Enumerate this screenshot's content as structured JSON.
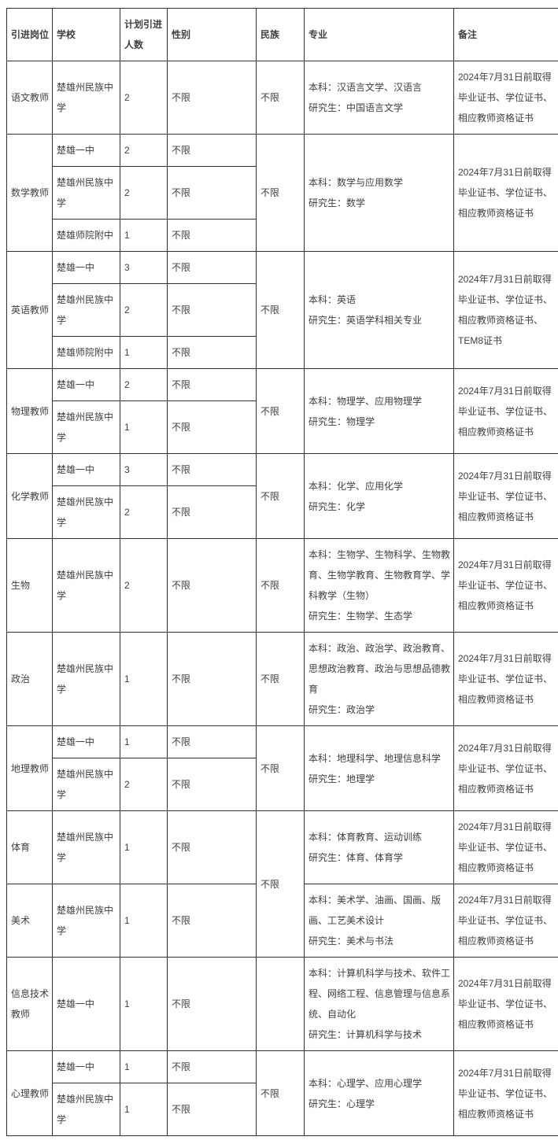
{
  "table": {
    "headers": [
      "引进岗位",
      "学校",
      "计划引进人数",
      "性别",
      "民族",
      "专业",
      "备注"
    ],
    "groups": [
      {
        "position": "语文教师",
        "ethnicity": "不限",
        "major": "本科：汉语言文学、汉语言\n研究生：中国语言文学",
        "remark": "2024年7月31日前取得毕业证书、学位证书、相应教师资格证书",
        "rows": [
          {
            "school": "楚雄州民族中学",
            "count": "2",
            "gender": "不限"
          }
        ]
      },
      {
        "position": "数学教师",
        "ethnicity": "不限",
        "major": "本科：数学与应用数学\n研究生：数学",
        "remark": "2024年7月31日前取得毕业证书、学位证书、相应教师资格证书",
        "rows": [
          {
            "school": "楚雄一中",
            "count": "2",
            "gender": "不限"
          },
          {
            "school": "楚雄州民族中学",
            "count": "2",
            "gender": "不限"
          },
          {
            "school": "楚雄师院附中",
            "count": "1",
            "gender": "不限"
          }
        ]
      },
      {
        "position": "英语教师",
        "ethnicity": "不限",
        "major": "本科：英语\n研究生：英语学科相关专业",
        "remark": "2024年7月31日前取得毕业证书、学位证书、相应教师资格证书、TEM8证书",
        "rows": [
          {
            "school": "楚雄一中",
            "count": "3",
            "gender": "不限"
          },
          {
            "school": "楚雄州民族中学",
            "count": "2",
            "gender": "不限"
          },
          {
            "school": "楚雄师院附中",
            "count": "1",
            "gender": "不限"
          }
        ]
      },
      {
        "position": "物理教师",
        "ethnicity": "不限",
        "major": "本科：物理学、应用物理学\n研究生：物理学",
        "remark": "2024年7月31日前取得毕业证书、学位证书、相应教师资格证书",
        "rows": [
          {
            "school": "楚雄一中",
            "count": "2",
            "gender": "不限"
          },
          {
            "school": "楚雄州民族中学",
            "count": "1",
            "gender": "不限"
          }
        ]
      },
      {
        "position": "化学教师",
        "ethnicity": "不限",
        "major": "本科：化学、应用化学\n研究生：化学",
        "remark": "2024年7月31日前取得毕业证书、学位证书、相应教师资格证书",
        "rows": [
          {
            "school": "楚雄一中",
            "count": "3",
            "gender": "不限"
          },
          {
            "school": "楚雄州民族中学",
            "count": "2",
            "gender": "不限"
          }
        ]
      },
      {
        "position": "生物",
        "ethnicity": "不限",
        "major": "本科：生物学、生物科学、生物教育、生物学教育、生物教育学、学科教学（生物）\n研究生：生物学、生态学",
        "remark": "2024年7月31日前取得毕业证书、学位证书、相应教师资格证书",
        "rows": [
          {
            "school": "楚雄州民族中学",
            "count": "2",
            "gender": "不限"
          }
        ]
      },
      {
        "position": "政治",
        "ethnicity": "不限",
        "major": "本科：政治、政治学、政治教育、思想政治教育、政治与思想品德教育\n研究生：政治学",
        "remark": "2024年7月31日前取得毕业证书、学位证书、相应教师资格证书",
        "rows": [
          {
            "school": "楚雄州民族中学",
            "count": "1",
            "gender": "不限"
          }
        ]
      },
      {
        "position": "地理教师",
        "ethnicity": "不限",
        "major": "本科：地理科学、地理信息科学\n研究生：地理学",
        "remark": "2024年7月31日前取得毕业证书、学位证书、相应教师资格证书",
        "rows": [
          {
            "school": "楚雄一中",
            "count": "1",
            "gender": "不限"
          },
          {
            "school": "楚雄州民族中学",
            "count": "2",
            "gender": "不限"
          }
        ]
      },
      {
        "position": "体育",
        "ethnicity": "不限",
        "ethnicity_span": 2,
        "major": "本科：体育教育、运动训练\n研究生：体育、体育学",
        "remark": "2024年7月31日前取得毕业证书、学位证书、相应教师资格证书",
        "rows": [
          {
            "school": "楚雄州民族中学",
            "count": "1",
            "gender": "不限"
          }
        ]
      },
      {
        "position": "美术",
        "ethnicity": null,
        "major": "本科：美术学、油画、国画、版画、工艺美术设计\n研究生：美术与书法",
        "remark": "2024年7月31日前取得毕业证书、学位证书、相应教师资格证书",
        "rows": [
          {
            "school": "楚雄州民族中学",
            "count": "1",
            "gender": "不限"
          }
        ]
      },
      {
        "position": "信息技术教师",
        "ethnicity": "",
        "major": "本科：计算机科学与技术、软件工程、网络工程、信息管理与信息系统、自动化\n研究生：计算机科学与技术",
        "remark": "2024年7月31日前取得毕业证书、学位证书、相应教师资格证书",
        "rows": [
          {
            "school": "楚雄一中",
            "count": "1",
            "gender": "不限"
          }
        ]
      },
      {
        "position": "心理教师",
        "ethnicity": "不限",
        "major": "本科：心理学、应用心理学\n研究生：心理学",
        "remark": "2024年7月31日前取得毕业证书、学位证书、相应教师资格证书",
        "rows": [
          {
            "school": "楚雄一中",
            "count": "1",
            "gender": "不限"
          },
          {
            "school": "楚雄州民族中学",
            "count": "1",
            "gender": "不限"
          }
        ]
      }
    ]
  }
}
